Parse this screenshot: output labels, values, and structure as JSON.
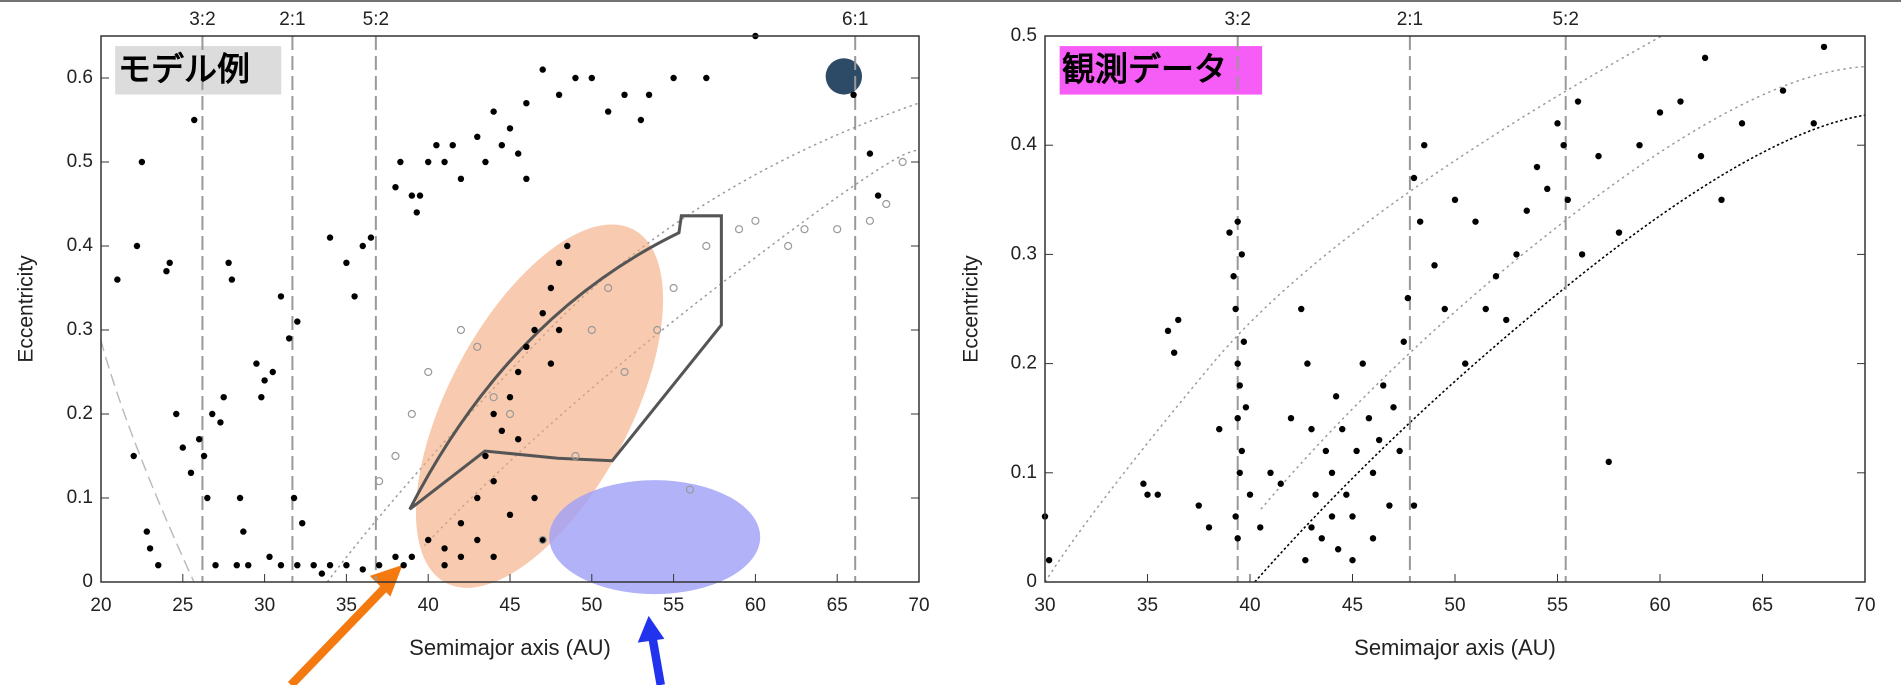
{
  "chart_data": [
    {
      "type": "scatter",
      "annotation": "モデル例",
      "xlabel": "Semimajor axis (AU)",
      "ylabel": "Eccentricity",
      "xlim": [
        20,
        70
      ],
      "ylim": [
        0,
        0.65
      ],
      "xticks": [
        20,
        25,
        30,
        35,
        40,
        45,
        50,
        55,
        60,
        65,
        70
      ],
      "yticks": [
        0,
        0.1,
        0.2,
        0.3,
        0.4,
        0.5,
        0.6
      ],
      "top_ticks": [
        {
          "value": 26.2,
          "label": "3:2"
        },
        {
          "value": 31.7,
          "label": "2:1"
        },
        {
          "value": 36.8,
          "label": "5:2"
        },
        {
          "value": 66.1,
          "label": "6:1"
        }
      ],
      "series": [
        {
          "color": "#000000",
          "marker": "filled",
          "x": [
            21,
            22,
            22.5,
            22.2,
            22.8,
            23,
            23.5,
            24,
            24.2,
            24.6,
            25,
            25.5,
            25.7,
            26,
            26.3,
            26.5,
            26.8,
            27,
            27.3,
            27.5,
            27.8,
            28,
            28.3,
            28.5,
            28.7,
            29,
            29.5,
            29.8,
            30,
            30.3,
            30.5,
            31,
            31,
            31.5,
            31.8,
            32,
            32.3,
            33,
            34,
            34,
            35,
            35.5,
            36,
            36.5,
            37,
            38,
            38.3,
            38,
            39,
            39.3,
            39.5,
            40,
            40.5,
            41,
            41.5,
            42,
            43,
            43.5,
            44,
            44.5,
            45,
            45.5,
            46,
            46,
            47,
            48,
            49,
            50,
            51,
            52,
            53,
            53.5,
            55,
            57,
            60,
            66,
            67,
            67.5,
            40,
            41,
            42,
            42,
            43,
            43,
            43.5,
            44,
            44,
            44.5,
            45,
            45.5,
            45.5,
            46,
            46.5,
            47,
            47.5,
            47.5,
            48,
            48.5,
            48,
            46.5,
            47,
            45,
            44,
            41,
            39,
            32,
            33.5,
            35,
            36,
            38.5
          ],
          "values": [
            0.36,
            0.15,
            0.5,
            0.4,
            0.06,
            0.04,
            0.02,
            0.37,
            0.38,
            0.2,
            0.16,
            0.13,
            0.55,
            0.17,
            0.15,
            0.1,
            0.2,
            0.02,
            0.19,
            0.22,
            0.38,
            0.36,
            0.02,
            0.1,
            0.06,
            0.02,
            0.26,
            0.22,
            0.24,
            0.03,
            0.25,
            0.34,
            0.02,
            0.29,
            0.1,
            0.31,
            0.07,
            0.02,
            0.02,
            0.41,
            0.38,
            0.34,
            0.4,
            0.41,
            0.02,
            0.47,
            0.5,
            0.03,
            0.46,
            0.44,
            0.46,
            0.5,
            0.52,
            0.5,
            0.52,
            0.48,
            0.53,
            0.5,
            0.56,
            0.52,
            0.54,
            0.51,
            0.48,
            0.57,
            0.61,
            0.58,
            0.6,
            0.6,
            0.56,
            0.58,
            0.55,
            0.58,
            0.6,
            0.6,
            0.65,
            0.58,
            0.51,
            0.46,
            0.05,
            0.04,
            0.03,
            0.07,
            0.05,
            0.1,
            0.15,
            0.12,
            0.2,
            0.18,
            0.22,
            0.25,
            0.17,
            0.28,
            0.3,
            0.32,
            0.35,
            0.26,
            0.38,
            0.4,
            0.3,
            0.1,
            0.05,
            0.08,
            0.03,
            0.02,
            0.03,
            0.02,
            0.01,
            0.02,
            0.015,
            0.02
          ]
        },
        {
          "color": "#999999",
          "marker": "open",
          "x": [
            37,
            38,
            39,
            40,
            42,
            43,
            44,
            45,
            47,
            50,
            52,
            54,
            55,
            57,
            59,
            60,
            62,
            63,
            65,
            67,
            68,
            69,
            56,
            49,
            51
          ],
          "values": [
            0.12,
            0.15,
            0.2,
            0.25,
            0.3,
            0.28,
            0.22,
            0.2,
            0.05,
            0.3,
            0.25,
            0.3,
            0.35,
            0.4,
            0.42,
            0.43,
            0.4,
            0.42,
            0.42,
            0.43,
            0.45,
            0.5,
            0.11,
            0.15,
            0.35
          ]
        }
      ]
    },
    {
      "type": "scatter",
      "annotation": "観測データ",
      "xlabel": "Semimajor axis (AU)",
      "ylabel": "Eccentricity",
      "xlim": [
        30,
        70
      ],
      "ylim": [
        0,
        0.5
      ],
      "xticks": [
        30,
        35,
        40,
        45,
        50,
        55,
        60,
        65,
        70
      ],
      "yticks": [
        0,
        0.1,
        0.2,
        0.3,
        0.4,
        0.5
      ],
      "top_ticks": [
        {
          "value": 39.4,
          "label": "3:2"
        },
        {
          "value": 47.8,
          "label": "2:1"
        },
        {
          "value": 55.4,
          "label": "5:2"
        }
      ],
      "series": [
        {
          "color": "#000000",
          "marker": "filled",
          "x": [
            30,
            30.2,
            34.8,
            35,
            35.5,
            36,
            36.3,
            36.5,
            37.5,
            38,
            38.5,
            39,
            39.2,
            39.3,
            39.4,
            39.5,
            39.4,
            39.6,
            39.5,
            39.3,
            39.4,
            39.6,
            39.7,
            39.8,
            39.4,
            40,
            40.5,
            41,
            41.5,
            42,
            42.5,
            42.8,
            43,
            43.2,
            43.5,
            43.7,
            44,
            44,
            44.3,
            44.5,
            44.7,
            45,
            45.2,
            45.5,
            45.8,
            46,
            46.3,
            46.5,
            46.8,
            47,
            47.3,
            47.5,
            47.7,
            48,
            48,
            48.3,
            48.5,
            49,
            49.5,
            50,
            50.5,
            51,
            51.5,
            52,
            52.5,
            53,
            53.5,
            54,
            54.5,
            55,
            55.3,
            55.5,
            56,
            56.2,
            57,
            57.5,
            58,
            59,
            60,
            61,
            62,
            62.2,
            63,
            64,
            66,
            67.5,
            68,
            43,
            44.2,
            45,
            42.7,
            46
          ],
          "values": [
            0.06,
            0.02,
            0.09,
            0.08,
            0.08,
            0.23,
            0.21,
            0.24,
            0.07,
            0.05,
            0.14,
            0.32,
            0.28,
            0.25,
            0.2,
            0.18,
            0.15,
            0.12,
            0.1,
            0.06,
            0.04,
            0.3,
            0.22,
            0.16,
            0.33,
            0.08,
            0.05,
            0.1,
            0.09,
            0.15,
            0.25,
            0.2,
            0.05,
            0.08,
            0.04,
            0.12,
            0.06,
            0.1,
            0.03,
            0.14,
            0.08,
            0.02,
            0.12,
            0.2,
            0.15,
            0.1,
            0.13,
            0.18,
            0.07,
            0.16,
            0.12,
            0.22,
            0.26,
            0.37,
            0.07,
            0.33,
            0.4,
            0.29,
            0.25,
            0.35,
            0.2,
            0.33,
            0.25,
            0.28,
            0.24,
            0.3,
            0.34,
            0.38,
            0.36,
            0.42,
            0.4,
            0.35,
            0.44,
            0.3,
            0.39,
            0.11,
            0.32,
            0.4,
            0.43,
            0.44,
            0.39,
            0.48,
            0.35,
            0.42,
            0.45,
            0.42,
            0.49,
            0.14,
            0.17,
            0.06,
            0.02,
            0.04
          ]
        }
      ]
    }
  ]
}
